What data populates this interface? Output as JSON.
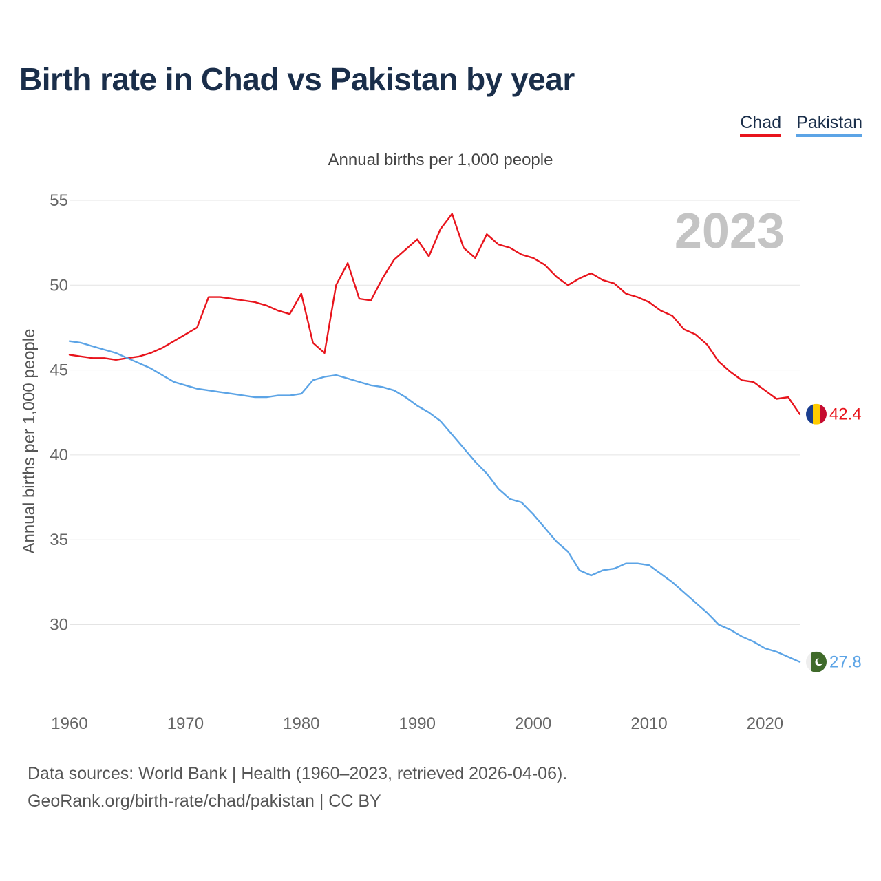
{
  "title": "Birth rate in Chad vs Pakistan by year",
  "legend": [
    {
      "label": "Chad",
      "color": "#e8141c"
    },
    {
      "label": "Pakistan",
      "color": "#5ca4e6"
    }
  ],
  "source": {
    "line1": "Data sources: World Bank | Health (1960–2023, retrieved 2026-04-06).",
    "line2": "GeoRank.org/birth-rate/chad/pakistan | CC BY"
  },
  "chart_data": {
    "type": "line",
    "title": "Birth rate in Chad vs Pakistan by year",
    "subtitle": "Annual births per 1,000 people",
    "ylabel": "Annual births per 1,000 people",
    "xlabel": "",
    "year_label": "2023",
    "xlim": [
      1960,
      2023
    ],
    "ylim": [
      25.6,
      55
    ],
    "x_ticks": [
      1960,
      1970,
      1980,
      1990,
      2000,
      2010,
      2020
    ],
    "y_ticks": [
      30,
      35,
      40,
      45,
      50,
      55
    ],
    "x": [
      1960,
      1961,
      1962,
      1963,
      1964,
      1965,
      1966,
      1967,
      1968,
      1969,
      1970,
      1971,
      1972,
      1973,
      1974,
      1975,
      1976,
      1977,
      1978,
      1979,
      1980,
      1981,
      1982,
      1983,
      1984,
      1985,
      1986,
      1987,
      1988,
      1989,
      1990,
      1991,
      1992,
      1993,
      1994,
      1995,
      1996,
      1997,
      1998,
      1999,
      2000,
      2001,
      2002,
      2003,
      2004,
      2005,
      2006,
      2007,
      2008,
      2009,
      2010,
      2011,
      2012,
      2013,
      2014,
      2015,
      2016,
      2017,
      2018,
      2019,
      2020,
      2021,
      2022,
      2023
    ],
    "series": [
      {
        "name": "Chad",
        "color": "#e8141c",
        "end_label": "42.4",
        "values": [
          45.9,
          45.8,
          45.7,
          45.7,
          45.6,
          45.7,
          45.8,
          46.0,
          46.3,
          46.7,
          47.1,
          47.5,
          49.3,
          49.3,
          49.2,
          49.1,
          49.0,
          48.8,
          48.5,
          48.3,
          49.5,
          46.6,
          46.0,
          50.0,
          51.3,
          49.2,
          49.1,
          50.4,
          51.5,
          52.1,
          52.7,
          51.7,
          53.3,
          54.2,
          52.2,
          51.6,
          53.0,
          52.4,
          52.2,
          51.8,
          51.6,
          51.2,
          50.5,
          50.0,
          50.4,
          50.7,
          50.3,
          50.1,
          49.5,
          49.3,
          49.0,
          48.5,
          48.2,
          47.4,
          47.1,
          46.5,
          45.5,
          44.9,
          44.4,
          44.3,
          43.8,
          43.3,
          43.4,
          42.4
        ]
      },
      {
        "name": "Pakistan",
        "color": "#5ca4e6",
        "end_label": "27.8",
        "values": [
          46.7,
          46.6,
          46.4,
          46.2,
          46.0,
          45.7,
          45.4,
          45.1,
          44.7,
          44.3,
          44.1,
          43.9,
          43.8,
          43.7,
          43.6,
          43.5,
          43.4,
          43.4,
          43.5,
          43.5,
          43.6,
          44.4,
          44.6,
          44.7,
          44.5,
          44.3,
          44.1,
          44.0,
          43.8,
          43.4,
          42.9,
          42.5,
          42.0,
          41.2,
          40.4,
          39.6,
          38.9,
          38.0,
          37.4,
          37.2,
          36.5,
          35.7,
          34.9,
          34.3,
          33.2,
          32.9,
          33.2,
          33.3,
          33.6,
          33.6,
          33.5,
          33.0,
          32.5,
          31.9,
          31.3,
          30.7,
          30.0,
          29.7,
          29.3,
          29.0,
          28.6,
          28.4,
          28.1,
          27.8
        ]
      }
    ]
  }
}
